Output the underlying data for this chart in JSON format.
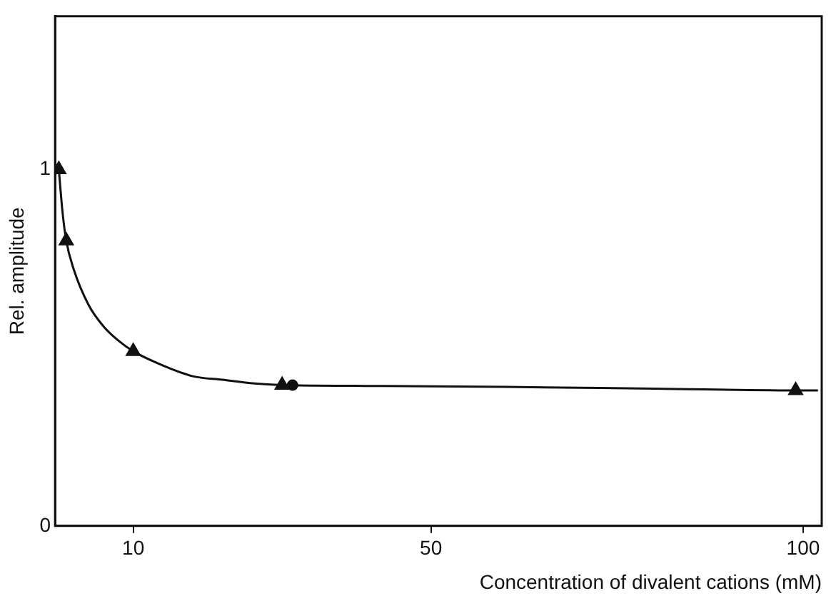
{
  "chart_data": {
    "type": "scatter",
    "xlabel": "Concentration of divalent cations (mM)",
    "ylabel": "Rel. amplitude",
    "xlim": [
      -0.5,
      102.5
    ],
    "xticks": [
      10,
      50,
      100
    ],
    "ylim": [
      0,
      1.43
    ],
    "yticks": [
      0,
      1
    ],
    "grid": false,
    "legend": false,
    "series": [
      {
        "type": "line",
        "marker": "none",
        "line_style": "solid",
        "color": "#111111",
        "x": [
          0,
          0.5,
          1,
          2,
          4,
          6,
          8,
          10,
          14,
          18,
          22,
          26,
          30,
          40,
          60,
          80,
          100,
          102
        ],
        "values": [
          1.0,
          0.88,
          0.8,
          0.72,
          0.62,
          0.56,
          0.52,
          0.49,
          0.45,
          0.42,
          0.41,
          0.4,
          0.395,
          0.393,
          0.39,
          0.385,
          0.38,
          0.38
        ]
      },
      {
        "marker": "triangle",
        "color": "#111111",
        "x": [
          0,
          1,
          10,
          30,
          99
        ],
        "values": [
          1.0,
          0.8,
          0.49,
          0.395,
          0.38
        ]
      },
      {
        "marker": "circle",
        "color": "#111111",
        "x": [
          31.4
        ],
        "values": [
          0.395
        ]
      }
    ]
  }
}
